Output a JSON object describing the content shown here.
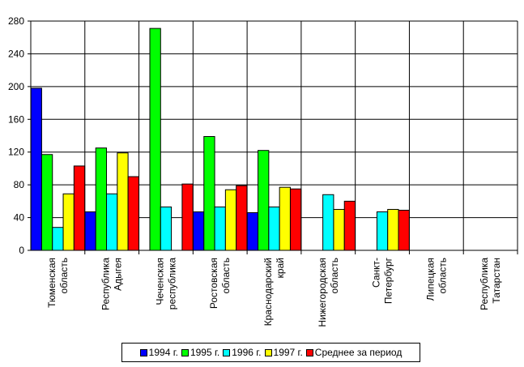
{
  "chart_data": {
    "type": "bar",
    "title": "",
    "xlabel": "",
    "ylabel": "",
    "ylim": [
      0,
      280
    ],
    "yticks": [
      0,
      40,
      80,
      120,
      160,
      200,
      240,
      280
    ],
    "grid": true,
    "legend_position": "bottom",
    "categories": [
      [
        "Тюменская",
        "область"
      ],
      [
        "Республика",
        "Адыгея"
      ],
      [
        "Чеченская",
        "республика"
      ],
      [
        "Ростовская",
        "область"
      ],
      [
        "Краснодарский",
        "край"
      ],
      [
        "Нижегородская",
        "область"
      ],
      [
        "Санкт-",
        "Петербург"
      ],
      [
        "Липецкая",
        "область"
      ],
      [
        "Республика",
        "Татарстан"
      ]
    ],
    "series": [
      {
        "name": "1994 г.",
        "color": "#0000ff",
        "values": [
          198,
          47,
          null,
          47,
          46,
          null,
          null,
          null,
          null
        ]
      },
      {
        "name": "1995 г.",
        "color": "#00ff00",
        "values": [
          117,
          125,
          271,
          139,
          122,
          null,
          null,
          null,
          null
        ]
      },
      {
        "name": "1996 г.",
        "color": "#00ffff",
        "values": [
          28,
          69,
          53,
          53,
          53,
          68,
          47,
          null,
          null
        ]
      },
      {
        "name": "1997 г.",
        "color": "#ffff00",
        "values": [
          69,
          119,
          null,
          74,
          77,
          50,
          50,
          null,
          null
        ]
      },
      {
        "name": "Среднее за период",
        "color": "#ff0000",
        "values": [
          103,
          90,
          81,
          79,
          75,
          60,
          49,
          null,
          null
        ]
      }
    ]
  }
}
